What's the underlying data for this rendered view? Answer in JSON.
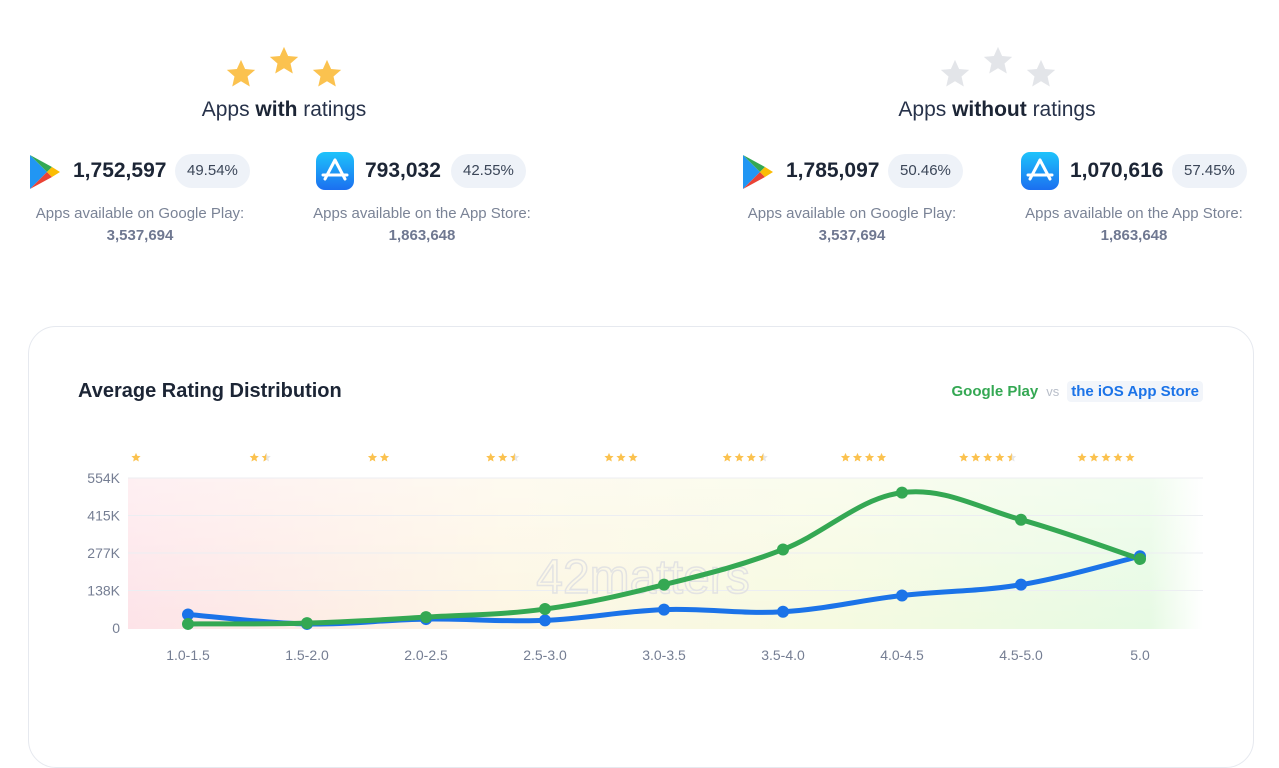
{
  "panels": {
    "with": {
      "title_prefix": "Apps ",
      "title_bold": "with",
      "title_suffix": " ratings",
      "google": {
        "value": "1,752,597",
        "pct": "49.54%",
        "label": "Apps available on Google Play:",
        "total": "3,537,694"
      },
      "apple": {
        "value": "793,032",
        "pct": "42.55%",
        "label": "Apps available on the App Store:",
        "total": "1,863,648"
      }
    },
    "without": {
      "title_prefix": "Apps ",
      "title_bold": "without",
      "title_suffix": " ratings",
      "google": {
        "value": "1,785,097",
        "pct": "50.46%",
        "label": "Apps available on Google Play:",
        "total": "3,537,694"
      },
      "apple": {
        "value": "1,070,616",
        "pct": "57.45%",
        "label": "Apps available on the App Store:",
        "total": "1,863,648"
      }
    }
  },
  "icons": {
    "rated_stars": "star-icon",
    "unrated_stars": "star-outline-icon",
    "google": "google-play-icon",
    "apple": "app-store-icon"
  },
  "colors": {
    "google_play": "#34a853",
    "ios": "#1b73e8",
    "star": "#fbc24f",
    "star_empty": "#e3e5e9"
  },
  "chart_data": {
    "type": "line",
    "title": "Average Rating Distribution",
    "legend": {
      "google": "Google Play",
      "vs": "vs",
      "ios": "the iOS App Store"
    },
    "watermark": "42matters",
    "categories": [
      "1.0-1.5",
      "1.5-2.0",
      "2.0-2.5",
      "2.5-3.0",
      "3.0-3.5",
      "3.5-4.0",
      "4.0-4.5",
      "4.5-5.0",
      "5.0"
    ],
    "star_ratings": [
      1,
      1.5,
      2,
      2.5,
      3,
      3.5,
      4,
      4.5,
      5
    ],
    "y_ticks": [
      "0",
      "138K",
      "277K",
      "415K",
      "554K"
    ],
    "ylim": [
      0,
      554000
    ],
    "series": [
      {
        "name": "Google Play",
        "color": "#34a853",
        "values": [
          15000,
          18000,
          40000,
          70000,
          160000,
          290000,
          500000,
          400000,
          255000
        ]
      },
      {
        "name": "the iOS App Store",
        "color": "#1b73e8",
        "values": [
          50000,
          15000,
          33000,
          28000,
          68000,
          60000,
          120000,
          160000,
          265000
        ]
      }
    ],
    "grid": true
  }
}
